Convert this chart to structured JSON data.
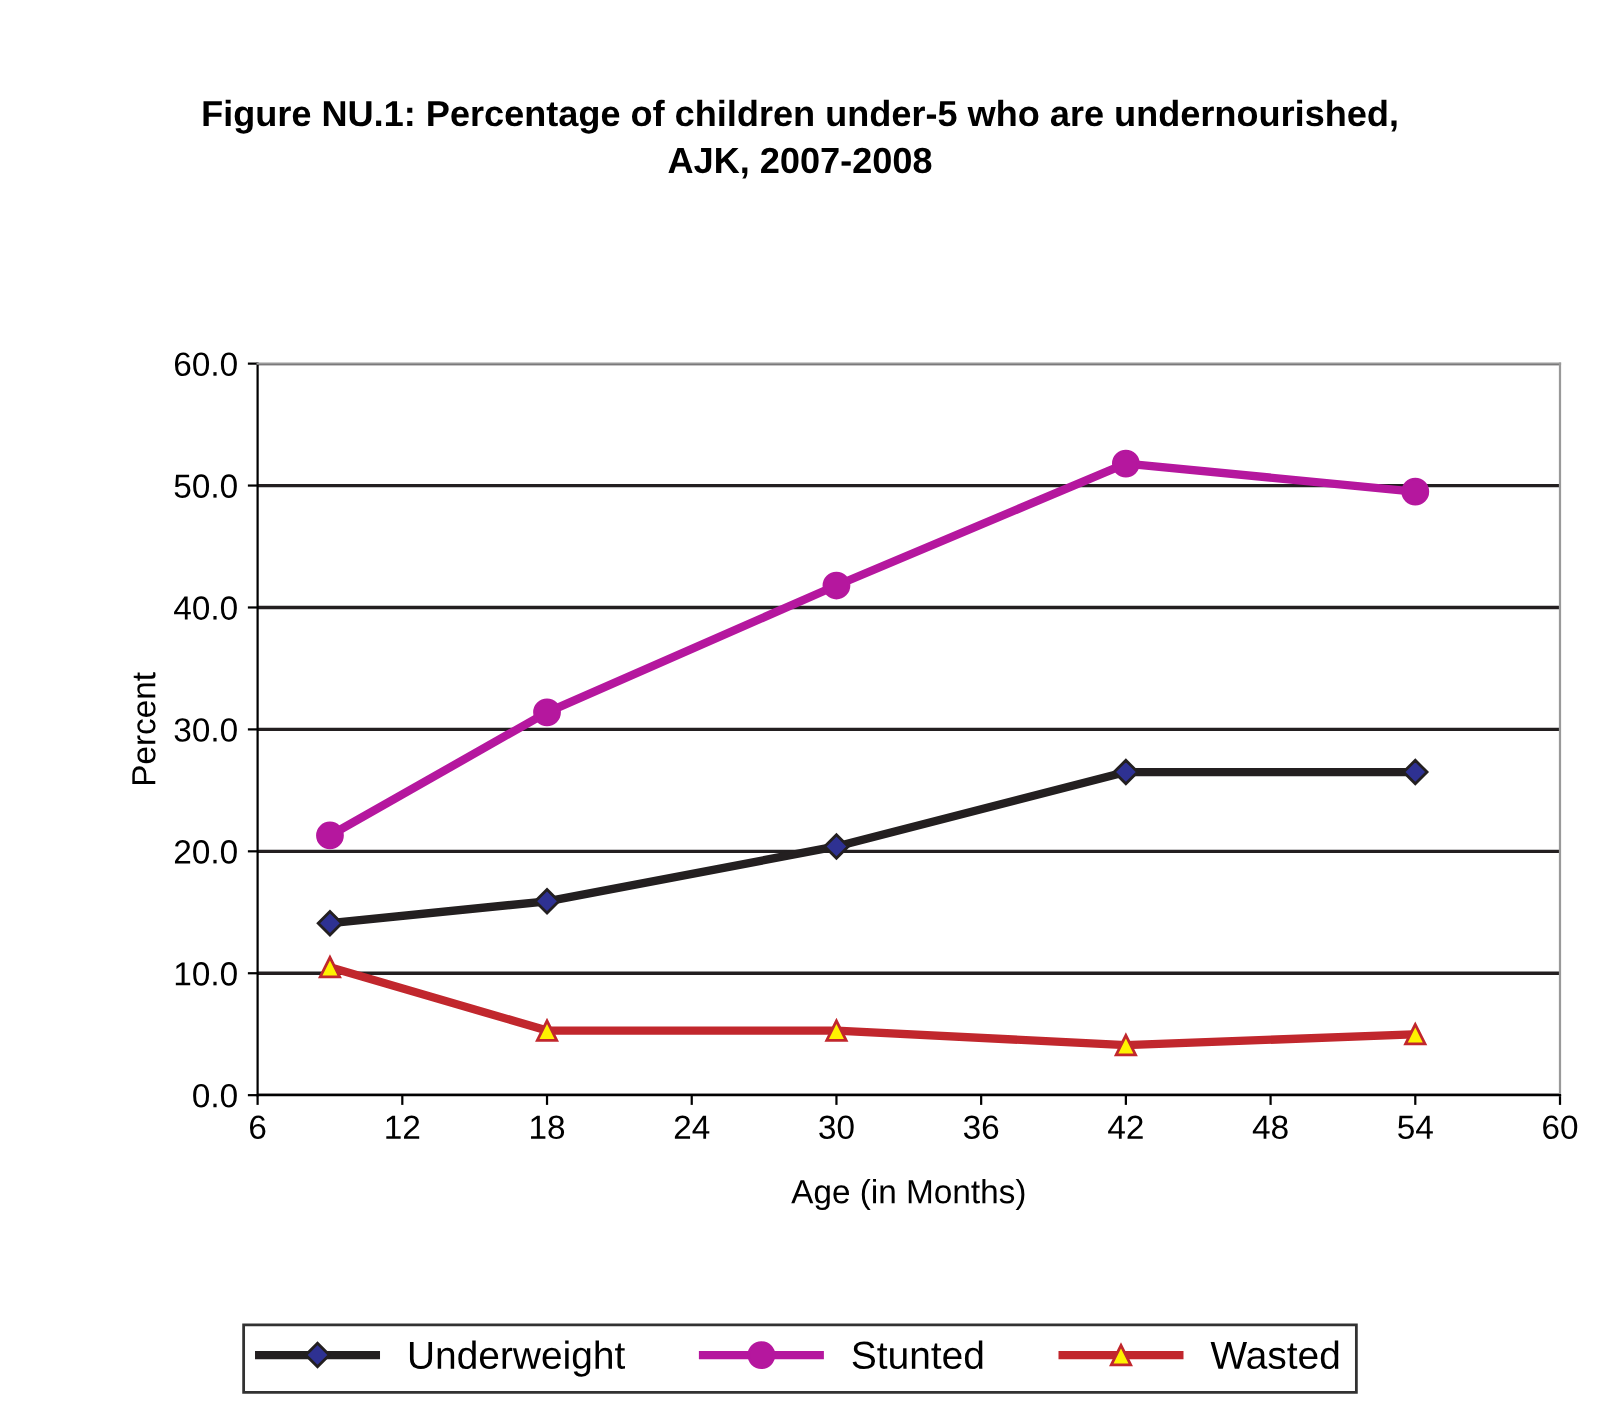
{
  "chart_data": {
    "type": "line",
    "title": "Figure NU.1: Percentage of children under-5 who are undernourished,\nAJK, 2007-2008",
    "xlabel": "Age (in Months)",
    "ylabel": "Percent",
    "x": [
      9,
      18,
      30,
      42,
      54
    ],
    "series": [
      {
        "name": "Underweight",
        "color": "#231f20",
        "marker": "diamond",
        "values": [
          14.1,
          15.9,
          20.4,
          26.5,
          26.5
        ]
      },
      {
        "name": "Stunted",
        "color": "#b5179e",
        "marker": "circle",
        "values": [
          21.3,
          31.4,
          41.8,
          51.8,
          49.5
        ]
      },
      {
        "name": "Wasted",
        "color": "#c1272d",
        "marker": "triangle",
        "values": [
          10.5,
          5.3,
          5.3,
          4.1,
          5.0
        ]
      }
    ],
    "xlim": [
      6,
      60
    ],
    "xticks": [
      6,
      12,
      18,
      24,
      30,
      36,
      42,
      48,
      54,
      60
    ],
    "ylim": [
      0,
      60
    ],
    "yticks": [
      {
        "value": 0,
        "label": "0.0"
      },
      {
        "value": 10,
        "label": "10.0"
      },
      {
        "value": 20,
        "label": "20.0"
      },
      {
        "value": 30,
        "label": "30.0"
      },
      {
        "value": 40,
        "label": "40.0"
      },
      {
        "value": 50,
        "label": "50.0"
      },
      {
        "value": 60,
        "label": "60.0"
      }
    ],
    "grid": "y",
    "legend": "bottom",
    "line_style": "solid"
  }
}
